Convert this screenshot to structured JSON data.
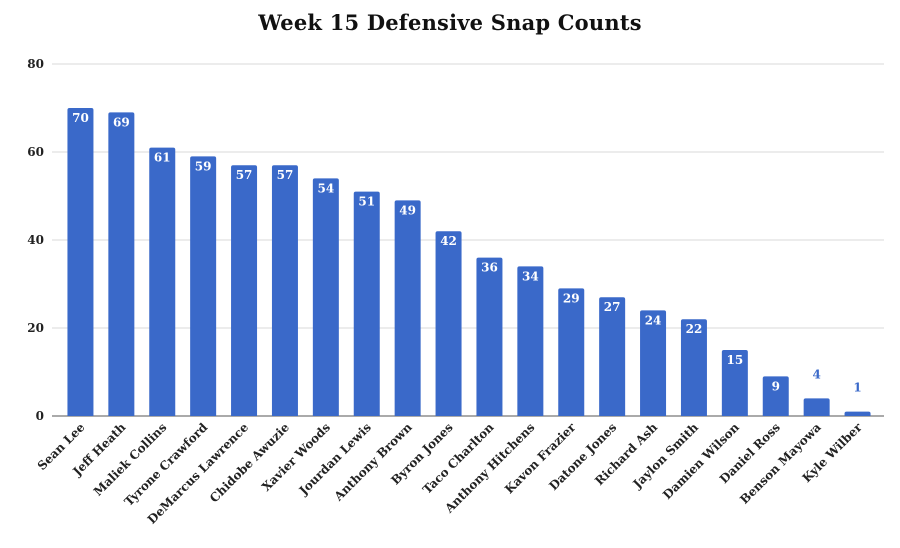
{
  "chart_data": {
    "type": "bar",
    "title": "Week 15 Defensive Snap Counts",
    "xlabel": "",
    "ylabel": "",
    "ylim": [
      0,
      80
    ],
    "yticks": [
      0,
      20,
      40,
      60,
      80
    ],
    "grid": true,
    "bar_color": "#3a69c9",
    "label_color_inside": "#ffffff",
    "label_color_outside": "#3a69c9",
    "categories": [
      "Sean Lee",
      "Jeff Heath",
      "Maliek Collins",
      "Tyrone Crawford",
      "DeMarcus Lawrence",
      "Chidobe Awuzie",
      "Xavier Woods",
      "Jourdan Lewis",
      "Anthony Brown",
      "Byron Jones",
      "Taco Charlton",
      "Anthony Hitchens",
      "Kavon Frazier",
      "Datone Jones",
      "Richard Ash",
      "Jaylon Smith",
      "Damien Wilson",
      "Daniel Ross",
      "Benson Mayowa",
      "Kyle Wilber"
    ],
    "values": [
      70,
      69,
      61,
      59,
      57,
      57,
      54,
      51,
      49,
      42,
      36,
      34,
      29,
      27,
      24,
      22,
      15,
      9,
      4,
      1
    ]
  }
}
